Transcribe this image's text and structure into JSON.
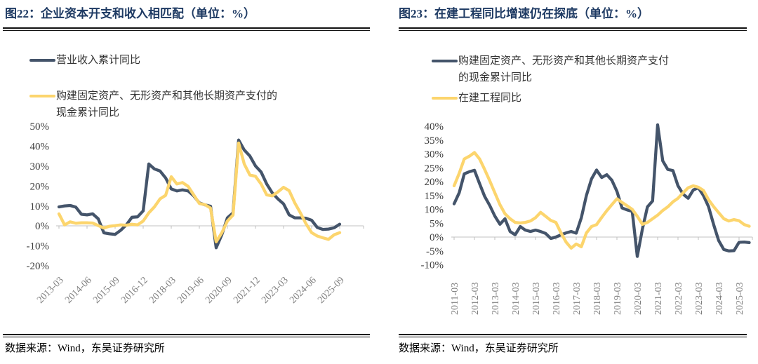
{
  "chart_data": [
    {
      "type": "line",
      "title": "图22：企业资本开支和收入相匹配（单位：%）",
      "source": "数据来源：Wind，东吴证券研究所",
      "legend_position": "top-left",
      "grid": false,
      "ylim": [
        -20,
        50
      ],
      "ytick_step": 10,
      "xtick_every": 5,
      "categories": [
        "2013-03",
        "2013-06",
        "2013-09",
        "2013-12",
        "2014-03",
        "2014-06",
        "2014-09",
        "2014-12",
        "2015-03",
        "2015-06",
        "2015-09",
        "2015-12",
        "2016-03",
        "2016-06",
        "2016-09",
        "2016-12",
        "2017-03",
        "2017-06",
        "2017-09",
        "2017-12",
        "2018-03",
        "2018-06",
        "2018-09",
        "2018-12",
        "2019-03",
        "2019-06",
        "2019-09",
        "2019-12",
        "2020-03",
        "2020-06",
        "2020-09",
        "2020-12",
        "2021-03",
        "2021-06",
        "2021-09",
        "2021-12",
        "2022-03",
        "2022-06",
        "2022-09",
        "2022-12",
        "2023-03",
        "2023-06",
        "2023-09",
        "2023-12",
        "2024-03",
        "2024-06",
        "2024-09",
        "2024-12",
        "2025-03",
        "2025-06",
        "2025-09"
      ],
      "series": [
        {
          "name": "营业收入累计同比",
          "label_lines": [
            "营业收入累计同比"
          ],
          "color": "#44546A",
          "values": [
            9.5,
            10,
            10.2,
            9.4,
            5.8,
            5.5,
            6,
            3.5,
            -3.5,
            -4,
            -4.3,
            -2.2,
            0.5,
            4.3,
            4.5,
            7.5,
            31,
            28.5,
            27.5,
            24,
            18.5,
            17.5,
            18,
            17.5,
            15,
            11.5,
            10.5,
            9.8,
            -11,
            -4.5,
            4,
            6.5,
            43,
            38,
            35,
            30,
            27,
            21,
            16.5,
            13.5,
            11,
            5.5,
            4,
            4,
            3.8,
            2.8,
            -0.8,
            -1.8,
            -1.6,
            -1,
            0.8
          ]
        },
        {
          "name": "购建固定资产、无形资产和其他长期资产支付的现金累计同比",
          "label_lines": [
            "购建固定资产、无形资产和其他长期资产支付的",
            "现金累计同比"
          ],
          "color": "#FCD56D",
          "values": [
            6,
            0.5,
            2,
            1.3,
            1.5,
            1.5,
            1.4,
            0.1,
            -1.1,
            -0.2,
            0.1,
            0.5,
            0.3,
            0.8,
            0.5,
            2.4,
            6.5,
            9.5,
            13.5,
            15.3,
            24.6,
            21,
            21.7,
            19.8,
            15.5,
            11.2,
            10.6,
            8.9,
            -8,
            -3.5,
            2.4,
            5.4,
            41.5,
            31,
            25.5,
            24.8,
            21,
            15.5,
            15,
            17,
            19.3,
            17.6,
            11.5,
            6.5,
            1,
            -3.4,
            -5.1,
            -6,
            -6.8,
            -4.5,
            -3.4
          ]
        }
      ]
    },
    {
      "type": "line",
      "title": "图23：在建工程同比增速仍在探底（单位：%）",
      "source": "数据来源：Wind，东吴证券研究所",
      "legend_position": "top-left",
      "grid": false,
      "ylim": [
        -10,
        40
      ],
      "ytick_step": 5,
      "xtick_every": 4,
      "categories": [
        "2011-03",
        "2011-06",
        "2011-09",
        "2011-12",
        "2012-03",
        "2012-06",
        "2012-09",
        "2012-12",
        "2013-03",
        "2013-06",
        "2013-09",
        "2013-12",
        "2014-03",
        "2014-06",
        "2014-09",
        "2014-12",
        "2015-03",
        "2015-06",
        "2015-09",
        "2015-12",
        "2016-03",
        "2016-06",
        "2016-09",
        "2016-12",
        "2017-03",
        "2017-06",
        "2017-09",
        "2017-12",
        "2018-03",
        "2018-06",
        "2018-09",
        "2018-12",
        "2019-03",
        "2019-06",
        "2019-09",
        "2019-12",
        "2020-03",
        "2020-06",
        "2020-09",
        "2020-12",
        "2021-03",
        "2021-06",
        "2021-09",
        "2021-12",
        "2022-03",
        "2022-06",
        "2022-09",
        "2022-12",
        "2023-03",
        "2023-06",
        "2023-09",
        "2023-12",
        "2024-03",
        "2024-06",
        "2024-09",
        "2024-12",
        "2025-03",
        "2025-06",
        "2025-09"
      ],
      "series": [
        {
          "name": "购建固定资产、无形资产和其他长期资产支付的现金累计同比",
          "label_lines": [
            "购建固定资产、无形资产和其他长期资产支付",
            "的现金累计同比"
          ],
          "color": "#44546A",
          "values": [
            12,
            16,
            22.8,
            23.6,
            24.1,
            19.3,
            14.7,
            11.4,
            7.6,
            4.6,
            6.6,
            2,
            0.8,
            3.8,
            2.5,
            2,
            2.5,
            2,
            1.3,
            -0.5,
            0,
            0.8,
            1.5,
            2,
            1.4,
            7,
            15,
            21,
            24.2,
            21.5,
            22.5,
            20.5,
            16.5,
            10.5,
            9.8,
            9.3,
            -7,
            2.9,
            10.9,
            13,
            40.5,
            27.5,
            24.4,
            24,
            18.5,
            15.5,
            14,
            17,
            17.8,
            15,
            11,
            4.5,
            -1.3,
            -4.5,
            -5,
            -4.9,
            -1.9,
            -1.8,
            -2
          ]
        },
        {
          "name": "在建工程同比",
          "label_lines": [
            "在建工程同比"
          ],
          "color": "#FCD56D",
          "values": [
            18.5,
            23,
            28.2,
            29.2,
            30.5,
            28.2,
            24.4,
            20.3,
            16,
            11.7,
            8.4,
            6.6,
            5.3,
            5.1,
            5.3,
            5.8,
            7,
            8.9,
            7.5,
            6,
            5.3,
            1.5,
            -1.8,
            -4,
            -2.5,
            -3.5,
            1.5,
            3.8,
            4.5,
            7.1,
            9.5,
            11.7,
            13.8,
            12.5,
            11.3,
            10,
            7.5,
            4.6,
            5.3,
            6.6,
            7.9,
            9.6,
            10.9,
            12.7,
            14,
            16,
            17.8,
            18.5,
            18,
            16.8,
            13.5,
            11,
            8.8,
            6.6,
            5.8,
            6.3,
            5.9,
            4.5,
            3.9
          ]
        }
      ]
    }
  ]
}
